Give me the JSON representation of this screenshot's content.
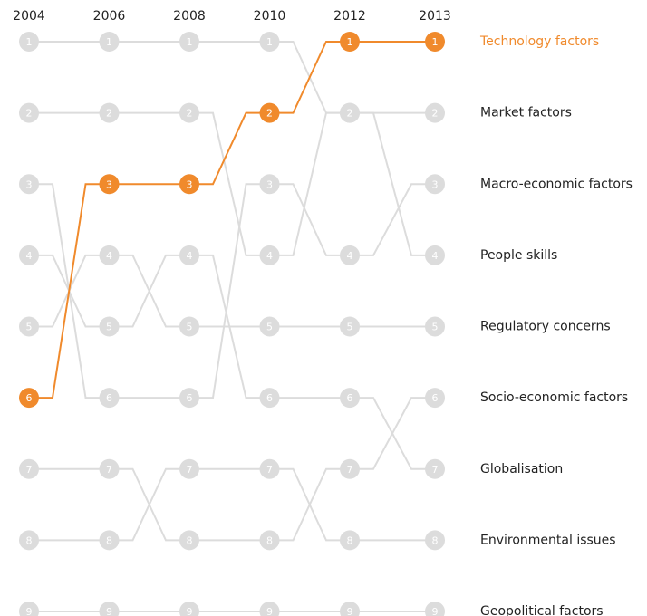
{
  "chart_data": {
    "type": "bump",
    "categories": [
      "2004",
      "2006",
      "2008",
      "2010",
      "2012",
      "2013"
    ],
    "ylim": [
      1,
      9
    ],
    "series": [
      {
        "name": "Market factors",
        "color": "#dcdcdc",
        "label_color": "#222222",
        "values": [
          1,
          1,
          1,
          1,
          2,
          2
        ]
      },
      {
        "name": "Macro-economic factors",
        "color": "#dcdcdc",
        "label_color": "#222222",
        "values": [
          3,
          6,
          6,
          3,
          4,
          3
        ]
      },
      {
        "name": "People skills",
        "color": "#dcdcdc",
        "label_color": "#222222",
        "values": [
          2,
          2,
          2,
          4,
          2,
          4
        ]
      },
      {
        "name": "Regulatory concerns",
        "color": "#dcdcdc",
        "label_color": "#222222",
        "values": [
          5,
          4,
          5,
          5,
          5,
          5
        ]
      },
      {
        "name": "Socio-economic factors",
        "color": "#dcdcdc",
        "label_color": "#222222",
        "values": [
          7,
          7,
          8,
          8,
          7,
          6
        ]
      },
      {
        "name": "Globalisation",
        "color": "#dcdcdc",
        "label_color": "#222222",
        "values": [
          4,
          5,
          4,
          6,
          6,
          7
        ]
      },
      {
        "name": "Environmental issues",
        "color": "#dcdcdc",
        "label_color": "#222222",
        "values": [
          8,
          8,
          7,
          7,
          8,
          8
        ]
      },
      {
        "name": "Geopolitical factors",
        "color": "#dcdcdc",
        "label_color": "#222222",
        "values": [
          9,
          9,
          9,
          9,
          9,
          9
        ]
      },
      {
        "name": "Technology factors",
        "color": "#f08a2c",
        "label_color": "#f08a2c",
        "values": [
          6,
          3,
          3,
          2,
          1,
          1
        ]
      }
    ]
  }
}
